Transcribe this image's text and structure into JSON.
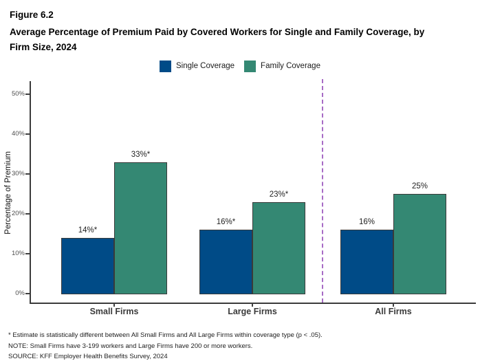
{
  "figure": {
    "label": "Figure 6.2",
    "title": "Average Percentage of Premium Paid by Covered Workers for Single and Family Coverage, by\nFirm Size, 2024"
  },
  "chart_data": {
    "type": "bar",
    "categories": [
      "Small Firms",
      "Large Firms",
      "All Firms"
    ],
    "series": [
      {
        "name": "Single Coverage",
        "color": "#004B87",
        "values": [
          14,
          16,
          16
        ],
        "bar_labels": [
          "14%*",
          "16%*",
          "16%"
        ]
      },
      {
        "name": "Family Coverage",
        "color": "#348873",
        "values": [
          33,
          23,
          25
        ],
        "bar_labels": [
          "33%*",
          "23%*",
          "25%"
        ]
      }
    ],
    "ylabel": "Percentage of Premium",
    "xlabel": "",
    "ylim": [
      0,
      50
    ],
    "yticks": [
      0,
      10,
      20,
      30,
      40,
      50
    ],
    "ytick_labels": [
      "0%",
      "10%",
      "20%",
      "30%",
      "40%",
      "50%"
    ],
    "grid": false,
    "legend_position": "top-center",
    "divider": {
      "between": [
        "Large Firms",
        "All Firms"
      ],
      "style": "dashed",
      "color": "#A76BC5"
    }
  },
  "footnotes": [
    "* Estimate is statistically different between All Small Firms and All Large Firms within coverage type (p < .05).",
    "NOTE: Small Firms have 3-199 workers and Large Firms have 200 or more workers.",
    "SOURCE: KFF Employer Health Benefits Survey, 2024"
  ]
}
